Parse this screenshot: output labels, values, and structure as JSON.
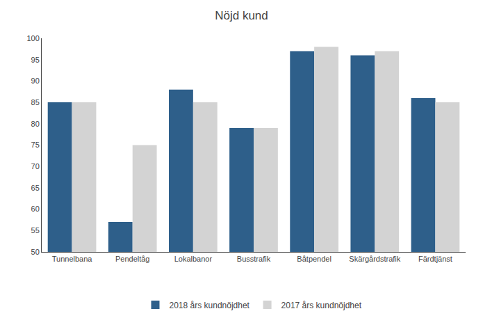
{
  "chart_data": {
    "type": "bar",
    "title": "Nöjd kund",
    "categories": [
      "Tunnelbana",
      "Pendeltåg",
      "Lokalbanor",
      "Busstrafik",
      "Båtpendel",
      "Skärgårdstrafik",
      "Färdtjänst"
    ],
    "series": [
      {
        "name": "2018 års kundnöjdhet",
        "color": "#2E5F8A",
        "values": [
          85,
          57,
          88,
          79,
          97,
          96,
          86
        ]
      },
      {
        "name": "2017 års kundnöjdhet",
        "color": "#D3D3D3",
        "values": [
          85,
          75,
          85,
          79,
          98,
          97,
          85
        ]
      }
    ],
    "ylim": [
      50,
      100
    ],
    "yticks": [
      50,
      55,
      60,
      65,
      70,
      75,
      80,
      85,
      90,
      95,
      100
    ],
    "grid": false,
    "legend": "bottom"
  }
}
